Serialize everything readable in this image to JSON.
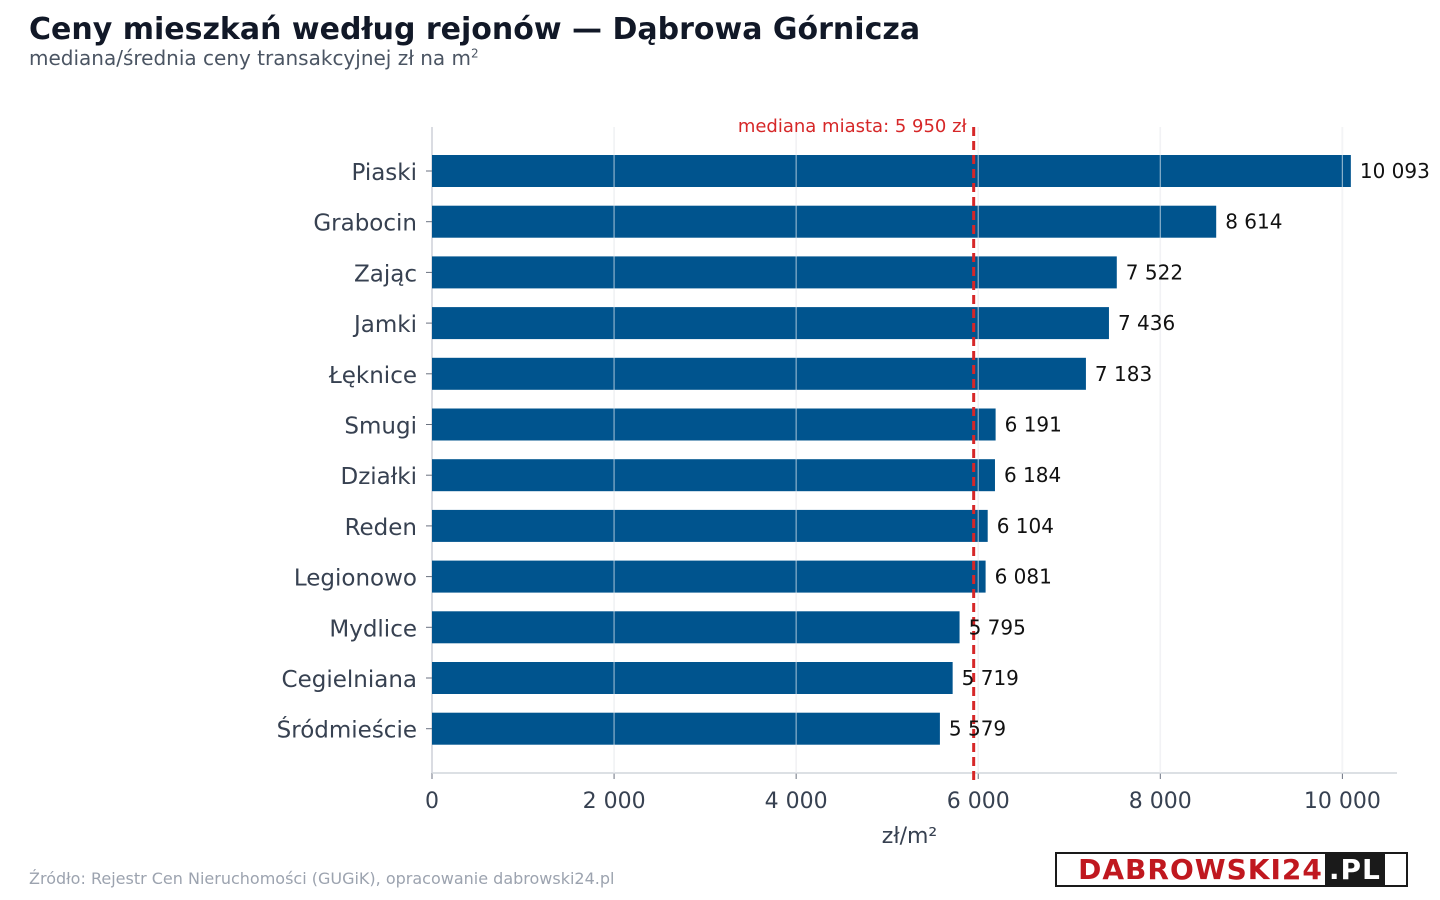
{
  "header": {
    "title": "Ceny mieszkań według rejonów — Dąbrowa Górnicza",
    "subtitle": "mediana/średnia ceny transakcyjnej zł na m",
    "subtitle_sup": "2"
  },
  "footer": {
    "source": "Źródło: Rejestr Cen Nieruchomości (GUGiK), opracowanie dabrowski24.pl",
    "logo_main": "DABROWSKI24",
    "logo_tld": ".PL"
  },
  "colors": {
    "bar": "#00548e",
    "median_line": "#d62728",
    "grid": "#e5e7eb",
    "axis_text": "#374151",
    "value_text": "#111111"
  },
  "chart_data": {
    "type": "bar",
    "orientation": "horizontal",
    "categories": [
      "Piaski",
      "Grabocin",
      "Zając",
      "Jamki",
      "Łęknice",
      "Smugi",
      "Działki",
      "Reden",
      "Legionowo",
      "Mydlice",
      "Cegielniana",
      "Śródmieście"
    ],
    "values": [
      10093,
      8614,
      7522,
      7436,
      7183,
      6191,
      6184,
      6104,
      6081,
      5795,
      5719,
      5579
    ],
    "value_labels": [
      "10 093",
      "8 614",
      "7 522",
      "7 436",
      "7 183",
      "6 191",
      "6 184",
      "6 104",
      "6 081",
      "5 795",
      "5 719",
      "5 579"
    ],
    "xlabel": "zł/m²",
    "xlim": [
      0,
      10600
    ],
    "xticks": [
      0,
      2000,
      4000,
      6000,
      8000,
      10000
    ],
    "xtick_labels": [
      "0",
      "2 000",
      "4 000",
      "6 000",
      "8 000",
      "10 000"
    ],
    "grid": true,
    "reference_line": {
      "value": 5950,
      "label": "mediana miasta: 5 950 zł"
    }
  }
}
